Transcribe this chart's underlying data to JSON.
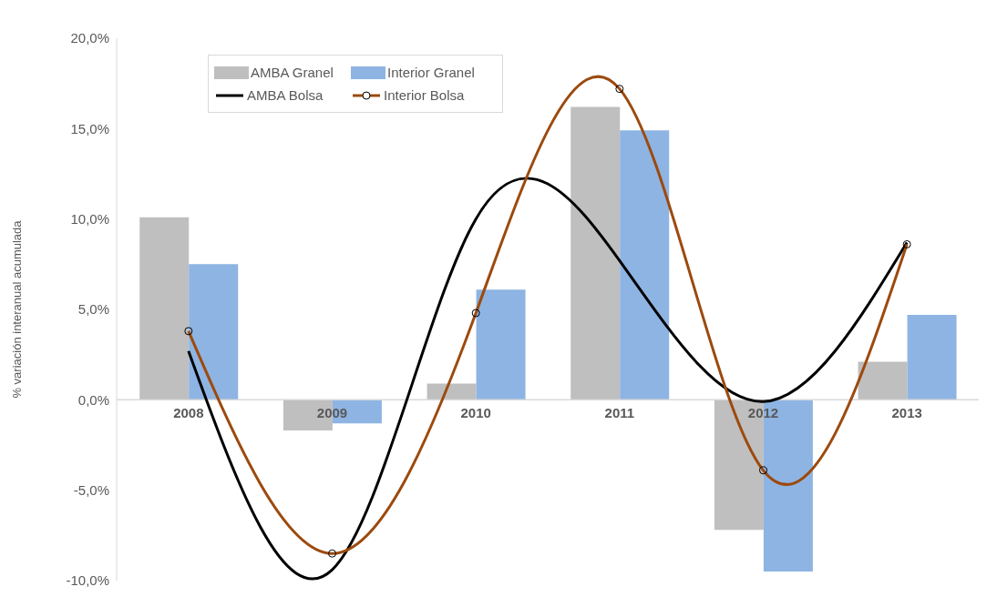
{
  "chart_data": {
    "type": "bar",
    "ylabel": "% variación interanual acumulada",
    "categories": [
      "2008",
      "2009",
      "2010",
      "2011",
      "2012",
      "2013"
    ],
    "series": [
      {
        "name": "AMBA Granel",
        "color": "#bfbfbf",
        "values": [
          10.1,
          -1.7,
          0.9,
          16.2,
          -7.2,
          2.1
        ]
      },
      {
        "name": "Interior Granel",
        "color": "#8eb4e3",
        "values": [
          7.5,
          -1.3,
          6.1,
          14.9,
          -9.5,
          4.7
        ]
      },
      {
        "name": "AMBA Bolsa",
        "type": "line",
        "color": "#000000",
        "marker": "none",
        "values": [
          2.7,
          -9.4,
          10.0,
          7.7,
          -0.1,
          8.7
        ]
      },
      {
        "name": "Interior Bolsa",
        "type": "line",
        "color": "#9c4a0e",
        "marker": "circle",
        "values": [
          3.8,
          -8.5,
          4.8,
          17.2,
          -3.9,
          8.6
        ]
      }
    ],
    "ylim": [
      -10,
      20
    ],
    "yticks": [
      {
        "value": -10,
        "label": "-10,0%"
      },
      {
        "value": -5,
        "label": "-5,0%"
      },
      {
        "value": 0,
        "label": "0,0%"
      },
      {
        "value": 5,
        "label": "5,0%"
      },
      {
        "value": 10,
        "label": "10,0%"
      },
      {
        "value": 15,
        "label": "15,0%"
      },
      {
        "value": 20,
        "label": "20,0%"
      }
    ],
    "grid": false,
    "legend": "top left"
  }
}
